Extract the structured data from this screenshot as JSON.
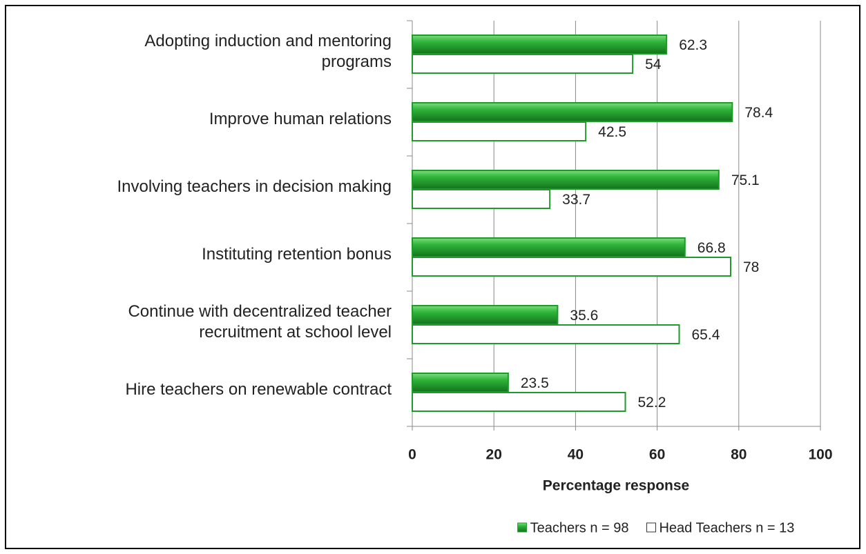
{
  "chart_data": {
    "type": "hbar",
    "xlabel": "Percentage response",
    "categories": [
      "Adopting induction and mentoring programs",
      "Improve human relations",
      "Involving teachers in decision making",
      "Instituting retention bonus",
      "Continue with decentralized teacher recruitment at school level",
      "Hire teachers on renewable contract"
    ],
    "series": [
      {
        "name": "Teachers n = 98",
        "color": "#1f9a2a",
        "fill": "#1f9a2a",
        "values": [
          62.3,
          78.4,
          75.1,
          66.8,
          35.6,
          23.5
        ]
      },
      {
        "name": "Head Teachers n = 13",
        "color": "#1f9a2a",
        "fill": "#ffffff",
        "values": [
          54,
          42.5,
          33.7,
          78,
          65.4,
          52.2
        ]
      }
    ],
    "xlim": [
      0,
      100
    ],
    "xticks": [
      0,
      20,
      40,
      60,
      80,
      100
    ],
    "grid": true,
    "legend": "bottom"
  }
}
